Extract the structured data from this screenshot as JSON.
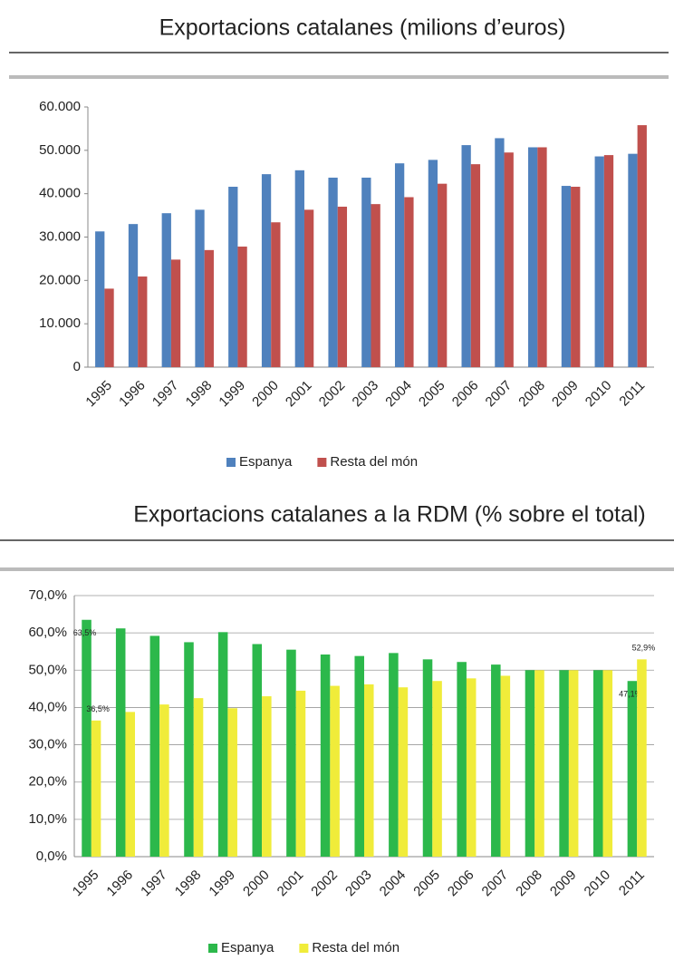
{
  "chart_data": [
    {
      "type": "bar",
      "title": "Exportacions catalanes (milions d’euros)",
      "categories": [
        "1995",
        "1996",
        "1997",
        "1998",
        "1999",
        "2000",
        "2001",
        "2002",
        "2003",
        "2004",
        "2005",
        "2006",
        "2007",
        "2008",
        "2009",
        "2010",
        "2011"
      ],
      "series": [
        {
          "name": "Espanya",
          "color": "#4f81bd",
          "values": [
            31300,
            33000,
            35500,
            36300,
            41600,
            44500,
            45400,
            43700,
            43700,
            47000,
            47800,
            51200,
            52800,
            50700,
            41800,
            48600,
            49200
          ]
        },
        {
          "name": "Resta del món",
          "color": "#c0504d",
          "values": [
            18100,
            20900,
            24800,
            27000,
            27800,
            33400,
            36300,
            37000,
            37600,
            39200,
            42300,
            46800,
            49500,
            50700,
            41600,
            48900,
            55800
          ]
        }
      ],
      "ylim": [
        0,
        60000
      ],
      "yticks": [
        0,
        {
          "value": 10000,
          "label": "10.000"
        },
        {
          "value": 20000,
          "label": "20.000"
        },
        {
          "value": 30000,
          "label": "30.000"
        },
        {
          "value": 40000,
          "label": "40.000"
        },
        {
          "value": 50000,
          "label": "50.000"
        },
        {
          "value": 60000,
          "label": "60.000"
        }
      ],
      "grid": false,
      "legend": "bottom"
    },
    {
      "type": "bar",
      "title": "Exportacions catalanes a la RDM (% sobre el total)",
      "categories": [
        "1995",
        "1996",
        "1997",
        "1998",
        "1999",
        "2000",
        "2001",
        "2002",
        "2003",
        "2004",
        "2005",
        "2006",
        "2007",
        "2008",
        "2009",
        "2010",
        "2011"
      ],
      "series": [
        {
          "name": "Espanya",
          "color": "#2cb84b",
          "values": [
            63.5,
            61.2,
            59.2,
            57.5,
            60.2,
            57.0,
            55.5,
            54.2,
            53.8,
            54.6,
            52.9,
            52.2,
            51.5,
            50.0,
            50.0,
            50.0,
            47.1
          ],
          "value_labels": [
            "63,5%",
            null,
            null,
            null,
            null,
            null,
            null,
            null,
            null,
            null,
            null,
            null,
            null,
            null,
            null,
            null,
            "47,1%"
          ]
        },
        {
          "name": "Resta del món",
          "color": "#f0ec3a",
          "values": [
            36.5,
            38.8,
            40.8,
            42.5,
            39.8,
            43.0,
            44.5,
            45.8,
            46.2,
            45.4,
            47.1,
            47.8,
            48.5,
            50.0,
            50.0,
            50.0,
            52.9
          ],
          "value_labels": [
            "36,5%",
            null,
            null,
            null,
            null,
            null,
            null,
            null,
            null,
            null,
            null,
            null,
            null,
            null,
            null,
            null,
            "52,9%"
          ]
        }
      ],
      "ylim": [
        0,
        70
      ],
      "yticks": [
        {
          "value": 0,
          "label": "0,0%"
        },
        {
          "value": 10,
          "label": "10,0%"
        },
        {
          "value": 20,
          "label": "20,0%"
        },
        {
          "value": 30,
          "label": "30,0%"
        },
        {
          "value": 40,
          "label": "40,0%"
        },
        {
          "value": 50,
          "label": "50,0%"
        },
        {
          "value": 60,
          "label": "60,0%"
        },
        {
          "value": 70,
          "label": "70,0%"
        }
      ],
      "grid": true,
      "legend": "bottom"
    }
  ]
}
